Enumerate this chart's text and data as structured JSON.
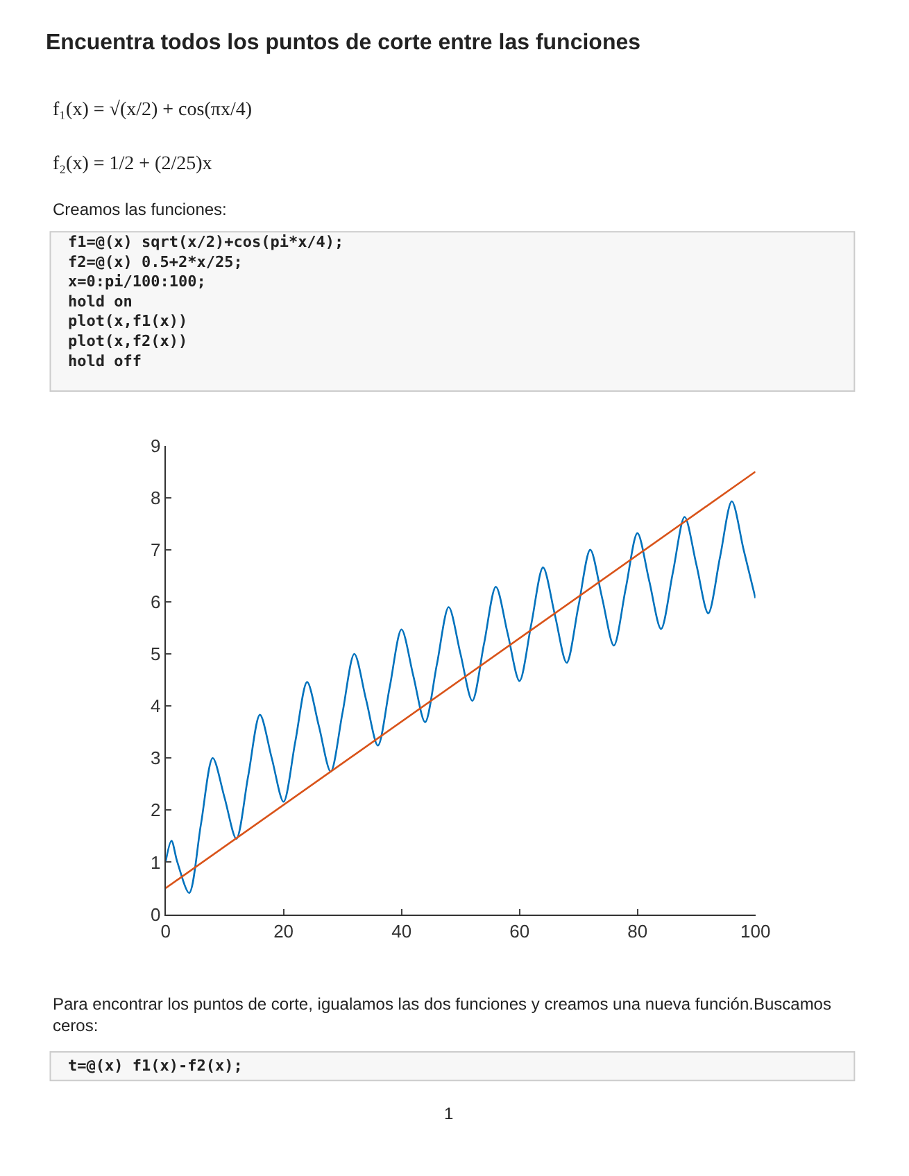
{
  "chart_data": {
    "type": "line",
    "title": "Encuentra todos los puntos de corte entre las funciones",
    "annotations": [
      "f₁(x) = √(x/2) + cos(πx/4)",
      "f₂(x) = 1/2 + (2/25)x",
      "Creamos las funciones:",
      "f1=@(x) sqrt(x/2)+cos(pi*x/4);\nf2=@(x) 0.5+2*x/25;\nx=0:pi/100:100;\nhold on\nplot(x,f1(x))\nplot(x,f2(x))\nhold off",
      "Para encontrar los puntos de corte, igualamos las dos funciones y creamos una nueva función.Buscamos\nceros:",
      "t=@(x) f1(x)-f2(x);",
      "1"
    ],
    "series": [
      {
        "color": "#0072bd",
        "x": [
          0,
          1,
          2,
          4,
          6,
          8,
          10,
          12,
          14,
          16,
          18,
          20,
          22,
          24,
          26,
          28,
          30,
          32,
          34,
          36,
          38,
          40,
          42,
          44,
          46,
          48,
          50,
          52,
          54,
          56,
          58,
          60,
          62,
          64,
          66,
          68,
          70,
          72,
          74,
          76,
          78,
          80,
          82,
          84,
          86,
          88,
          90,
          92,
          94,
          96,
          98,
          100
        ],
        "values": [
          1,
          1.41,
          1,
          0.41,
          1.73,
          3,
          2.24,
          1.45,
          2.65,
          3.83,
          3,
          2.16,
          3.32,
          4.46,
          3.61,
          2.74,
          3.87,
          5,
          4.12,
          3.24,
          4.36,
          5.47,
          4.58,
          3.69,
          4.8,
          5.9,
          5,
          4.1,
          5.2,
          6.29,
          5.39,
          4.48,
          5.57,
          6.66,
          5.75,
          4.83,
          5.92,
          7,
          6.08,
          5.16,
          6.25,
          7.32,
          6.4,
          5.48,
          6.56,
          7.63,
          6.71,
          5.78,
          6.86,
          7.93,
          7,
          6.07
        ]
      },
      {
        "color": "#d95319",
        "x": [
          0,
          100
        ],
        "values": [
          0.5,
          8.5
        ]
      }
    ],
    "xlim": [
      0,
      100
    ],
    "xticks": [
      0,
      20,
      40,
      60,
      80,
      100
    ],
    "ylim": [
      0,
      9
    ],
    "yticks": [
      0,
      1,
      2,
      3,
      4,
      5,
      6,
      7,
      8,
      9
    ],
    "legend": false
  }
}
